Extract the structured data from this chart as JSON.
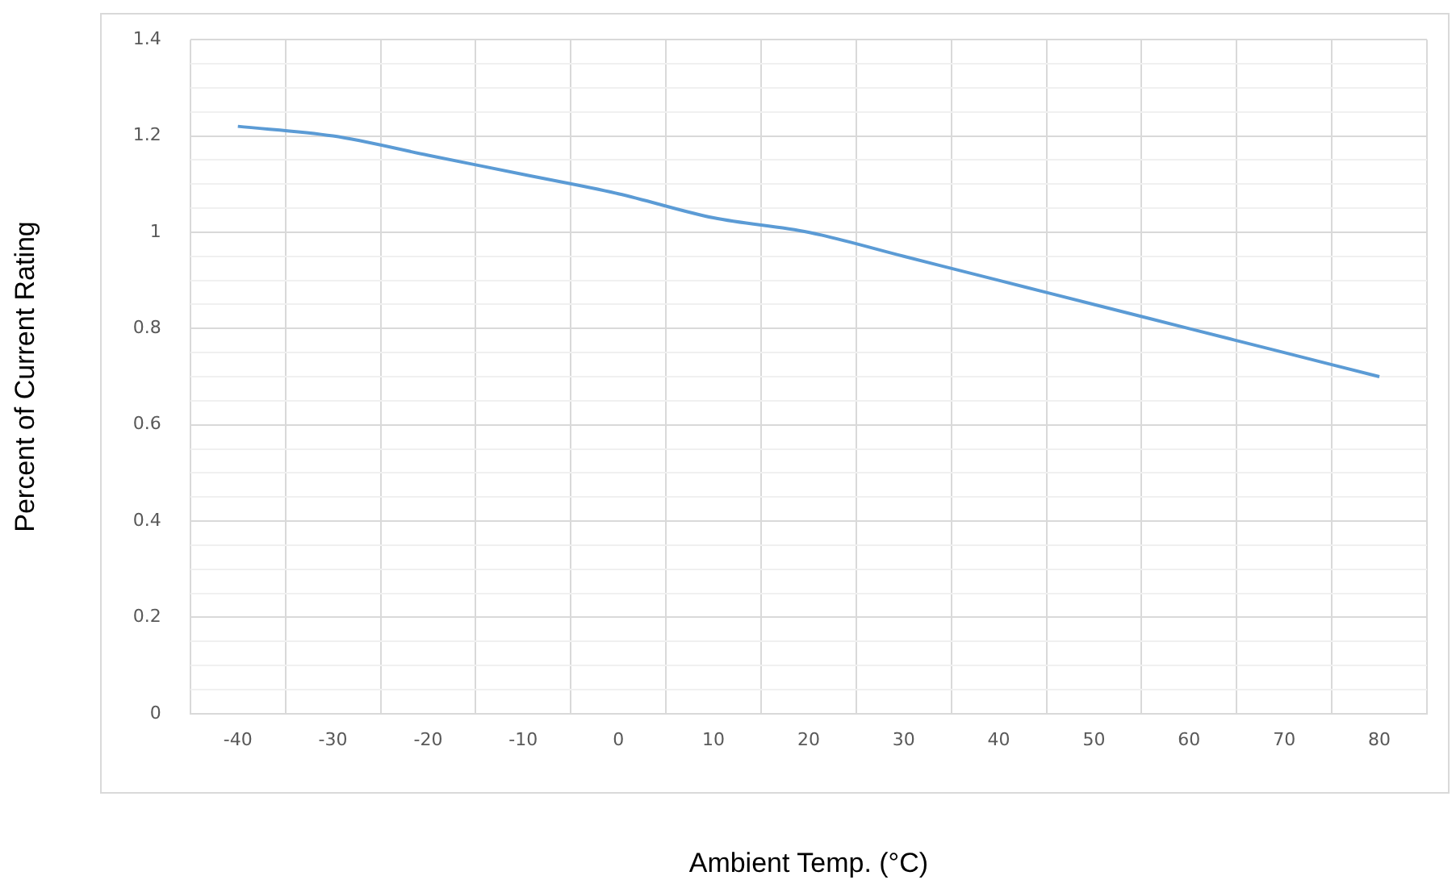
{
  "chart_data": {
    "type": "line",
    "xlabel": "Ambient Temp. (°C)",
    "ylabel": "Percent of Current Rating",
    "categories": [
      "-40",
      "-30",
      "-20",
      "-10",
      "0",
      "10",
      "20",
      "30",
      "40",
      "50",
      "60",
      "70",
      "80"
    ],
    "series": [
      {
        "color": "#5b9bd5",
        "values": [
          1.22,
          1.2,
          1.16,
          1.12,
          1.08,
          1.03,
          1.0,
          0.95,
          0.9,
          0.85,
          0.8,
          0.75,
          0.7
        ]
      }
    ],
    "ylim": [
      0,
      1.4
    ],
    "yticks": [
      0,
      {
        "value": 0.05,
        "label": null
      },
      {
        "value": 0.1,
        "label": null
      },
      {
        "value": 0.15,
        "label": null
      },
      0.2,
      {
        "value": 0.25,
        "label": null
      },
      {
        "value": 0.3,
        "label": null
      },
      {
        "value": 0.35,
        "label": null
      },
      0.4,
      {
        "value": 0.45,
        "label": null
      },
      {
        "value": 0.5,
        "label": null
      },
      {
        "value": 0.55,
        "label": null
      },
      0.6,
      {
        "value": 0.65,
        "label": null
      },
      {
        "value": 0.7,
        "label": null
      },
      {
        "value": 0.75,
        "label": null
      },
      0.8,
      {
        "value": 0.85,
        "label": null
      },
      {
        "value": 0.9,
        "label": null
      },
      {
        "value": 0.95,
        "label": null
      },
      1,
      {
        "value": 1.05,
        "label": null
      },
      {
        "value": 1.1,
        "label": null
      },
      {
        "value": 1.15,
        "label": null
      },
      1.2,
      {
        "value": 1.25,
        "label": null
      },
      {
        "value": 1.3,
        "label": null
      },
      {
        "value": 1.35,
        "label": null
      },
      1.4
    ],
    "grid": true,
    "legend": false,
    "marker": "none",
    "line_style": "solid"
  }
}
